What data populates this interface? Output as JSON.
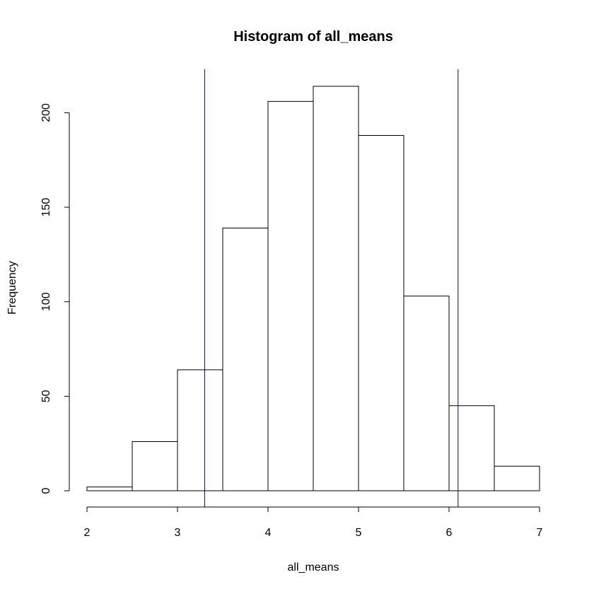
{
  "chart_data": {
    "type": "bar",
    "title": "Histogram of all_means",
    "xlabel": "all_means",
    "ylabel": "Frequency",
    "xlim": [
      2,
      7
    ],
    "ylim": [
      0,
      214
    ],
    "x_ticks": [
      2,
      3,
      4,
      5,
      6,
      7
    ],
    "y_ticks": [
      0,
      50,
      100,
      150,
      200
    ],
    "bins": [
      {
        "start": 2.0,
        "end": 2.5,
        "count": 2
      },
      {
        "start": 2.5,
        "end": 3.0,
        "count": 26
      },
      {
        "start": 3.0,
        "end": 3.5,
        "count": 64
      },
      {
        "start": 3.5,
        "end": 4.0,
        "count": 139
      },
      {
        "start": 4.0,
        "end": 4.5,
        "count": 206
      },
      {
        "start": 4.5,
        "end": 5.0,
        "count": 214
      },
      {
        "start": 5.0,
        "end": 5.5,
        "count": 188
      },
      {
        "start": 5.5,
        "end": 6.0,
        "count": 103
      },
      {
        "start": 6.0,
        "end": 6.5,
        "count": 45
      },
      {
        "start": 6.5,
        "end": 7.0,
        "count": 13
      }
    ],
    "vlines": [
      {
        "x": 3.3,
        "color": "#00008B"
      },
      {
        "x": 6.1,
        "color": "#00008B"
      }
    ],
    "bar_fill": "#ffffff",
    "bar_stroke": "#000000",
    "grid": false
  }
}
